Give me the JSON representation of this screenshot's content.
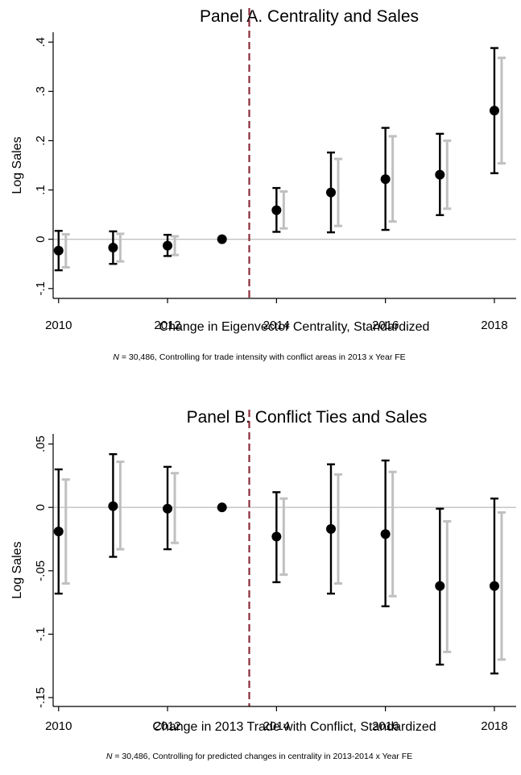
{
  "chart_data": [
    {
      "type": "scatter",
      "subtype": "event-study-coefficient-plot",
      "title": "Panel A. Centrality and Sales",
      "xlabel": "Change in Eigenvector Centrality, Standardized",
      "ylabel": "Log Sales",
      "note_prefix": "N",
      "note_text": " = 30,486, Controlling for trade intensity with conflict areas in 2013 x Year FE",
      "x_ticks": [
        2010,
        2012,
        2014,
        2016,
        2018
      ],
      "x_tick_labels": [
        "2010",
        "2012",
        "2014",
        "2016",
        "2018"
      ],
      "y_ticks": [
        -0.1,
        0,
        0.1,
        0.2,
        0.3,
        0.4
      ],
      "y_tick_labels": [
        "-.1",
        "0",
        ".1",
        ".2",
        ".3",
        ".4"
      ],
      "xlim": [
        2009.9,
        2018.4
      ],
      "ylim": [
        -0.12,
        0.42
      ],
      "reference_line_y": 0,
      "event_line_x": 2013.5,
      "x": [
        2010,
        2011,
        2012,
        2013,
        2014,
        2015,
        2016,
        2017,
        2018
      ],
      "series": [
        {
          "values": [
            -0.023,
            -0.017,
            -0.013,
            0.0,
            0.059,
            0.095,
            0.122,
            0.131,
            0.261
          ],
          "ci_low": [
            -0.063,
            -0.05,
            -0.034,
            0.0,
            0.015,
            0.014,
            0.019,
            0.049,
            0.134
          ],
          "ci_high": [
            0.017,
            0.016,
            0.009,
            0.0,
            0.104,
            0.176,
            0.226,
            0.214,
            0.388
          ],
          "color": "#000000"
        },
        {
          "ci_low": [
            -0.057,
            -0.045,
            -0.032,
            0.0,
            0.022,
            0.027,
            0.036,
            0.062,
            0.154
          ],
          "ci_high": [
            0.01,
            0.011,
            0.006,
            0.0,
            0.097,
            0.163,
            0.209,
            0.2,
            0.368
          ],
          "color": "#c0c0c0"
        }
      ]
    },
    {
      "type": "scatter",
      "subtype": "event-study-coefficient-plot",
      "title": "Panel B. Conflict Ties and Sales",
      "xlabel": "Change in 2013 Trade with Conflict, Standardized",
      "ylabel": "Log Sales",
      "note_prefix": "N",
      "note_text": " = 30,486, Controlling for predicted changes in centrality in 2013-2014 x Year FE",
      "x_ticks": [
        2010,
        2012,
        2014,
        2016,
        2018
      ],
      "x_tick_labels": [
        "2010",
        "2012",
        "2014",
        "2016",
        "2018"
      ],
      "y_ticks": [
        -0.15,
        -0.1,
        -0.05,
        0,
        0.05
      ],
      "y_tick_labels": [
        "-.15",
        "-.1",
        "-.05",
        "0",
        ".05"
      ],
      "xlim": [
        2009.9,
        2018.4
      ],
      "ylim": [
        -0.157,
        0.058
      ],
      "reference_line_y": 0,
      "event_line_x": 2013.5,
      "x": [
        2010,
        2011,
        2012,
        2013,
        2014,
        2015,
        2016,
        2017,
        2018
      ],
      "series": [
        {
          "values": [
            -0.019,
            0.001,
            -0.001,
            0.0,
            -0.023,
            -0.017,
            -0.021,
            -0.062,
            -0.062
          ],
          "ci_low": [
            -0.068,
            -0.039,
            -0.033,
            0.0,
            -0.059,
            -0.068,
            -0.078,
            -0.124,
            -0.131
          ],
          "ci_high": [
            0.03,
            0.042,
            0.032,
            0.0,
            0.012,
            0.034,
            0.037,
            -0.001,
            0.007
          ],
          "color": "#000000"
        },
        {
          "ci_low": [
            -0.06,
            -0.033,
            -0.028,
            0.0,
            -0.053,
            -0.06,
            -0.07,
            -0.114,
            -0.12
          ],
          "ci_high": [
            0.022,
            0.036,
            0.027,
            0.0,
            0.007,
            0.026,
            0.028,
            -0.011,
            -0.004
          ],
          "color": "#c0c0c0"
        }
      ]
    }
  ],
  "colors": {
    "point": "#000000",
    "ci_primary": "#000000",
    "ci_secondary": "#c0c0c0",
    "reference_line": "#c0c0c0",
    "event_line": "#8b2c3a"
  }
}
